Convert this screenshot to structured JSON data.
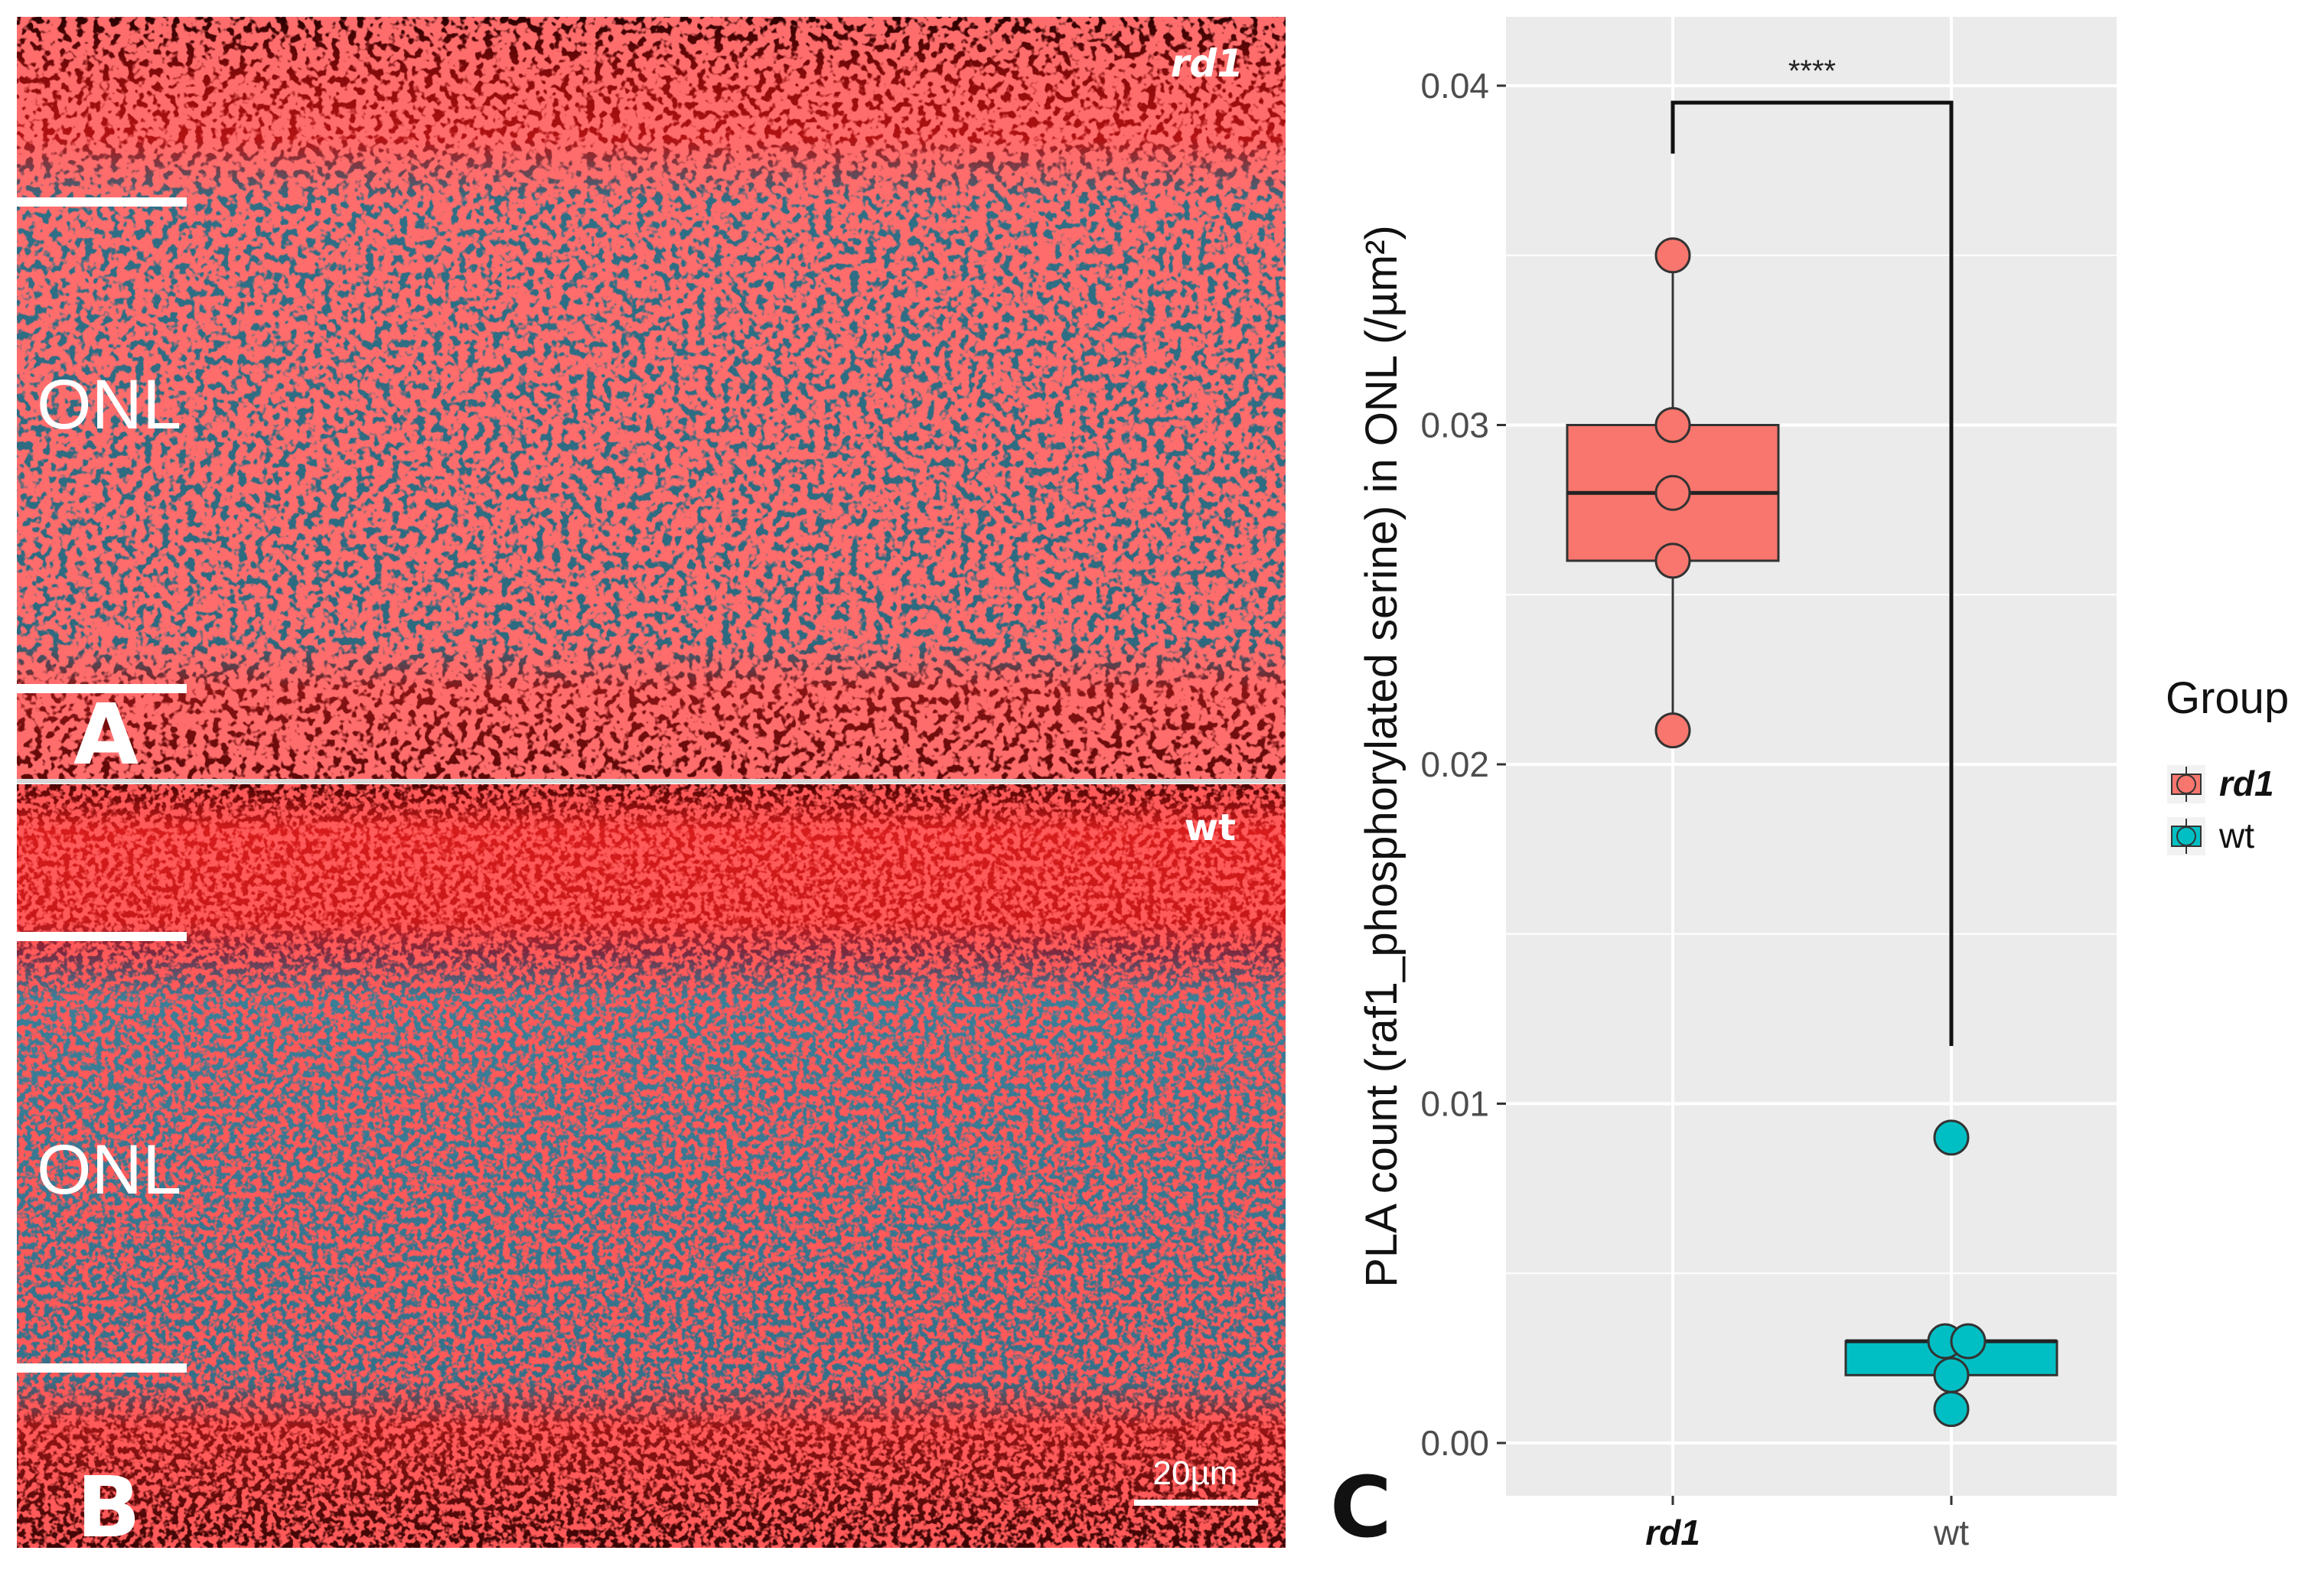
{
  "panels": {
    "a": {
      "letter": "A",
      "tag": "rd1",
      "layer_label": "ONL"
    },
    "b": {
      "letter": "B",
      "tag": "wt",
      "layer_label": "ONL",
      "scale_bar": "20µm"
    },
    "c": {
      "letter": "C"
    }
  },
  "colors": {
    "rd1": "#F8766D",
    "wt": "#00BFC4",
    "nuclei": "#3aa6c4",
    "signal": "#ff1e1e",
    "panel_bg": "#ebebeb",
    "grid": "#ffffff"
  },
  "chart_data": {
    "type": "boxplot",
    "ylabel": "PLA count (raf1_phosphorylated serine) in ONL (/µm²)",
    "xlabel": "",
    "categories": [
      "rd1",
      "wt"
    ],
    "ylim": [
      -0.0015,
      0.042
    ],
    "yticks": [
      0.0,
      0.01,
      0.02,
      0.03,
      0.04
    ],
    "ytick_labels": [
      "0.00",
      "0.01",
      "0.02",
      "0.03",
      "0.04"
    ],
    "grid": true,
    "legend": {
      "title": "Group",
      "position": "right",
      "items": [
        "rd1",
        "wt"
      ]
    },
    "series": [
      {
        "name": "rd1",
        "box": {
          "min": 0.021,
          "q1": 0.026,
          "median": 0.028,
          "q3": 0.03,
          "max": 0.035
        },
        "points": [
          0.035,
          0.03,
          0.028,
          0.026,
          0.021
        ]
      },
      {
        "name": "wt",
        "box": {
          "min": 0.001,
          "q1": 0.002,
          "median": 0.003,
          "q3": 0.003,
          "max": 0.003
        },
        "points": [
          0.009,
          0.003,
          0.003,
          0.002,
          0.001
        ]
      }
    ],
    "significance": {
      "label": "****",
      "y": 0.0395,
      "left_end": 0.038,
      "right_end": 0.0117
    }
  }
}
